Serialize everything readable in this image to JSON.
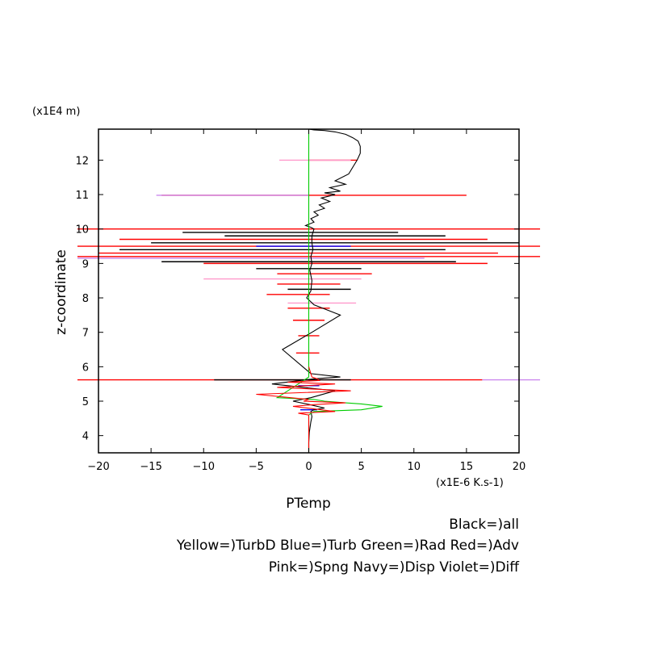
{
  "chart_data": {
    "type": "line",
    "title": "",
    "xlabel": "PTemp",
    "ylabel": "z-coordinate",
    "x_unit": "(x1E-6 K.s-1)",
    "y_unit": "(x1E4 m)",
    "xlim": [
      -20,
      20
    ],
    "ylim": [
      3.5,
      12.9
    ],
    "x_ticks": [
      -20,
      -15,
      -10,
      -5,
      0,
      5,
      10,
      15,
      20
    ],
    "x_tick_labels": [
      "−20",
      "−15",
      "−10",
      "−5",
      "0",
      "5",
      "10",
      "15",
      "20"
    ],
    "y_ticks": [
      4,
      5,
      6,
      7,
      8,
      9,
      10,
      11,
      12
    ],
    "y_tick_labels": [
      "4",
      "5",
      "6",
      "7",
      "8",
      "9",
      "10",
      "11",
      "12"
    ],
    "grid": false,
    "legend": {
      "line1": "Black=)all",
      "line2": "Yellow=)TurbD Blue=)Turb Green=)Rad Red=)Adv",
      "line3": "Pink=)Spng Navy=)Disp Violet=)Diff"
    },
    "colors": {
      "all": "#000000",
      "Turb": "#0000ff",
      "Rad": "#00cc00",
      "Adv": "#ff0000",
      "Spng": "#ff99cc",
      "Disp": "#000080",
      "Diff": "#cc88ee"
    },
    "series": [
      {
        "name": "all",
        "color": "#000000",
        "x": [
          0,
          0,
          0.05,
          0.2,
          0.3,
          0.2,
          0.5,
          1.5,
          0.1,
          -1.5,
          0.2,
          2.5,
          -3.5,
          0.5,
          3.0,
          0.2,
          -2.5,
          0.3,
          3.0,
          0.5,
          -0.2,
          0.2,
          0.3,
          0.1,
          0.3,
          0.2,
          0.4,
          0.3,
          0.3,
          0.5,
          0.2,
          -0.3,
          0.5,
          0.2,
          0.9,
          0.5,
          1.5,
          1.0,
          2.0,
          1.2,
          2.5,
          1.5,
          3.0,
          2.0,
          3.5,
          2.5,
          3.8,
          4.2,
          4.6,
          4.9,
          4.9,
          4.7,
          4.2,
          3.5,
          2.5,
          1.5,
          0.5,
          0
        ],
        "y": [
          3.5,
          3.8,
          4.1,
          4.4,
          4.55,
          4.7,
          4.75,
          4.8,
          4.9,
          5.0,
          5.1,
          5.3,
          5.5,
          5.65,
          5.7,
          5.8,
          6.5,
          7.0,
          7.5,
          7.8,
          8.0,
          8.2,
          8.5,
          8.8,
          9.0,
          9.2,
          9.4,
          9.6,
          9.8,
          10.0,
          10.05,
          10.1,
          10.2,
          10.3,
          10.4,
          10.5,
          10.6,
          10.7,
          10.8,
          10.9,
          11.0,
          11.05,
          11.1,
          11.2,
          11.3,
          11.4,
          11.6,
          11.8,
          12.0,
          12.2,
          12.4,
          12.55,
          12.65,
          12.75,
          12.82,
          12.86,
          12.88,
          12.9
        ]
      },
      {
        "name": "Rad",
        "color": "#00cc00",
        "x": [
          0,
          0,
          0.5,
          5.0,
          7.0,
          5.0,
          3.5,
          1.5,
          0.5,
          -3.0,
          -2.0,
          -1.0,
          -0.5,
          0,
          0,
          0,
          0,
          0
        ],
        "y": [
          3.5,
          4.6,
          4.7,
          4.75,
          4.85,
          4.92,
          4.95,
          5.0,
          5.05,
          5.1,
          5.3,
          5.5,
          5.6,
          5.7,
          7.0,
          9.0,
          11.0,
          12.9
        ]
      },
      {
        "name": "Adv",
        "color": "#ff0000",
        "x": [
          0,
          0,
          -1.0,
          2.5,
          -1.5,
          0.5,
          3.5,
          -0.5,
          0,
          -5.0,
          4.0,
          -3.0,
          2.5,
          -2.0,
          1.0,
          0.8,
          0.3,
          0
        ],
        "y": [
          3.5,
          4.6,
          4.65,
          4.7,
          4.85,
          4.9,
          4.95,
          5.0,
          5.05,
          5.2,
          5.3,
          5.4,
          5.5,
          5.55,
          5.6,
          5.65,
          5.7,
          6.0
        ]
      }
    ],
    "horizontal_spikes": [
      {
        "series": "Adv",
        "y": 12.0,
        "x_min": 0,
        "x_max": 4.6
      },
      {
        "series": "Spng",
        "y": 12.0,
        "x_min": -2.8,
        "x_max": 4.0
      },
      {
        "series": "Adv",
        "y": 10.98,
        "x_min": -14.0,
        "x_max": 15.0
      },
      {
        "series": "Diff",
        "y": 10.98,
        "x_min": -14.5,
        "x_max": 0
      },
      {
        "series": "Adv",
        "y": 10.0,
        "x_min": -22.0,
        "x_max": 22.0
      },
      {
        "series": "all",
        "y": 9.9,
        "x_min": -12.0,
        "x_max": 8.5
      },
      {
        "series": "all",
        "y": 9.8,
        "x_min": -8.0,
        "x_max": 13.0
      },
      {
        "series": "Adv",
        "y": 9.7,
        "x_min": -18.0,
        "x_max": 17.0
      },
      {
        "series": "all",
        "y": 9.6,
        "x_min": -15.0,
        "x_max": 20.0
      },
      {
        "series": "Adv",
        "y": 9.5,
        "x_min": -22.0,
        "x_max": 22.0
      },
      {
        "series": "Turb",
        "y": 9.5,
        "x_min": -5.0,
        "x_max": 4.0
      },
      {
        "series": "all",
        "y": 9.4,
        "x_min": -18.0,
        "x_max": 13.0
      },
      {
        "series": "Adv",
        "y": 9.3,
        "x_min": -20.0,
        "x_max": 18.0
      },
      {
        "series": "Adv",
        "y": 9.2,
        "x_min": -22.0,
        "x_max": 22.0
      },
      {
        "series": "Diff",
        "y": 9.15,
        "x_min": -22.0,
        "x_max": 11.0
      },
      {
        "series": "all",
        "y": 9.05,
        "x_min": -14.0,
        "x_max": 14.0
      },
      {
        "series": "Adv",
        "y": 9.0,
        "x_min": -10.0,
        "x_max": 17.0
      },
      {
        "series": "all",
        "y": 8.85,
        "x_min": -5.0,
        "x_max": 5.0
      },
      {
        "series": "Adv",
        "y": 8.7,
        "x_min": -3.0,
        "x_max": 6.0
      },
      {
        "series": "Spng",
        "y": 8.55,
        "x_min": -10.0,
        "x_max": 5.0
      },
      {
        "series": "Adv",
        "y": 8.4,
        "x_min": -3.0,
        "x_max": 3.0
      },
      {
        "series": "all",
        "y": 8.25,
        "x_min": -2.0,
        "x_max": 4.0
      },
      {
        "series": "Adv",
        "y": 8.1,
        "x_min": -4.0,
        "x_max": 2.0
      },
      {
        "series": "Spng",
        "y": 7.85,
        "x_min": -2.0,
        "x_max": 4.5
      },
      {
        "series": "Adv",
        "y": 7.7,
        "x_min": -2.0,
        "x_max": 2.0
      },
      {
        "series": "Adv",
        "y": 7.35,
        "x_min": -1.5,
        "x_max": 1.5
      },
      {
        "series": "Adv",
        "y": 6.9,
        "x_min": -1.0,
        "x_max": 1.0
      },
      {
        "series": "Adv",
        "y": 6.4,
        "x_min": -1.2,
        "x_max": 1.0
      },
      {
        "series": "Adv",
        "y": 5.62,
        "x_min": -22.0,
        "x_max": 16.5
      },
      {
        "series": "Diff",
        "y": 5.62,
        "x_min": 16.5,
        "x_max": 22.0
      },
      {
        "series": "all",
        "y": 5.62,
        "x_min": -9.0,
        "x_max": 4.0
      },
      {
        "series": "Turb",
        "y": 5.45,
        "x_min": -1.0,
        "x_max": 1.0
      },
      {
        "series": "Turb",
        "y": 4.75,
        "x_min": -0.8,
        "x_max": 0.8
      }
    ]
  }
}
